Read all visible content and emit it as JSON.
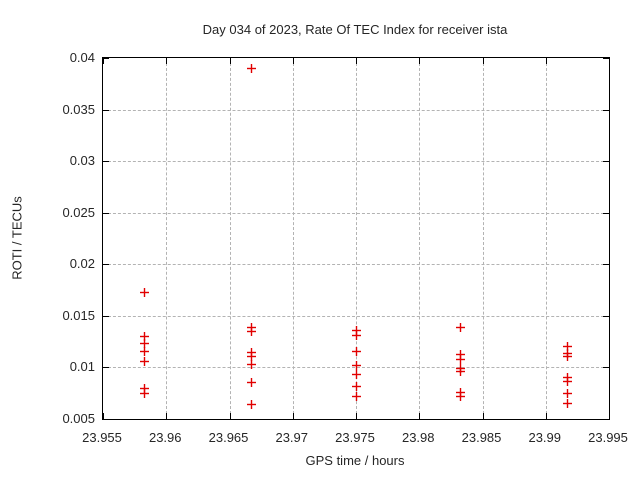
{
  "chart_data": {
    "type": "scatter",
    "title": "Day 034 of 2023, Rate Of TEC Index for receiver ista",
    "xlabel": "GPS time / hours",
    "ylabel": "ROTI / TECUs",
    "xlim": [
      23.955,
      23.995
    ],
    "ylim": [
      0.005,
      0.04
    ],
    "xticks": [
      23.955,
      23.96,
      23.965,
      23.97,
      23.975,
      23.98,
      23.985,
      23.99,
      23.995
    ],
    "xtick_labels": [
      "23.955",
      "23.96",
      "23.965",
      "23.97",
      "23.975",
      "23.98",
      "23.985",
      "23.99",
      "23.995"
    ],
    "yticks": [
      0.005,
      0.01,
      0.015,
      0.02,
      0.025,
      0.03,
      0.035,
      0.04
    ],
    "ytick_labels": [
      "0.005",
      "0.01",
      "0.015",
      "0.02",
      "0.025",
      "0.03",
      "0.035",
      "0.04"
    ],
    "grid": true,
    "legend": false,
    "marker": {
      "shape": "plus",
      "color": "#e10000",
      "size": 9
    },
    "series": [
      {
        "name": "ROTI",
        "groups": [
          {
            "x": 23.9583,
            "values": [
              0.0177,
              0.0134,
              0.0127,
              0.0119,
              0.011,
              0.0083,
              0.0079
            ]
          },
          {
            "x": 23.9667,
            "values": [
              0.0394,
              0.0143,
              0.0139,
              0.0118,
              0.0114,
              0.0107,
              0.0089,
              0.0068
            ]
          },
          {
            "x": 23.975,
            "values": [
              0.014,
              0.0135,
              0.0119,
              0.0106,
              0.0097,
              0.0085,
              0.0076
            ]
          },
          {
            "x": 23.9833,
            "values": [
              0.0143,
              0.0116,
              0.0112,
              0.0103,
              0.01,
              0.008,
              0.0076
            ]
          },
          {
            "x": 23.9917,
            "values": [
              0.0124,
              0.0117,
              0.0114,
              0.0094,
              0.009,
              0.0079,
              0.0069
            ]
          }
        ]
      }
    ],
    "colors": {
      "marker": "#e10000",
      "grid": "#b3b3b3",
      "border": "#000000",
      "text": "#262626",
      "background": "#ffffff"
    }
  }
}
